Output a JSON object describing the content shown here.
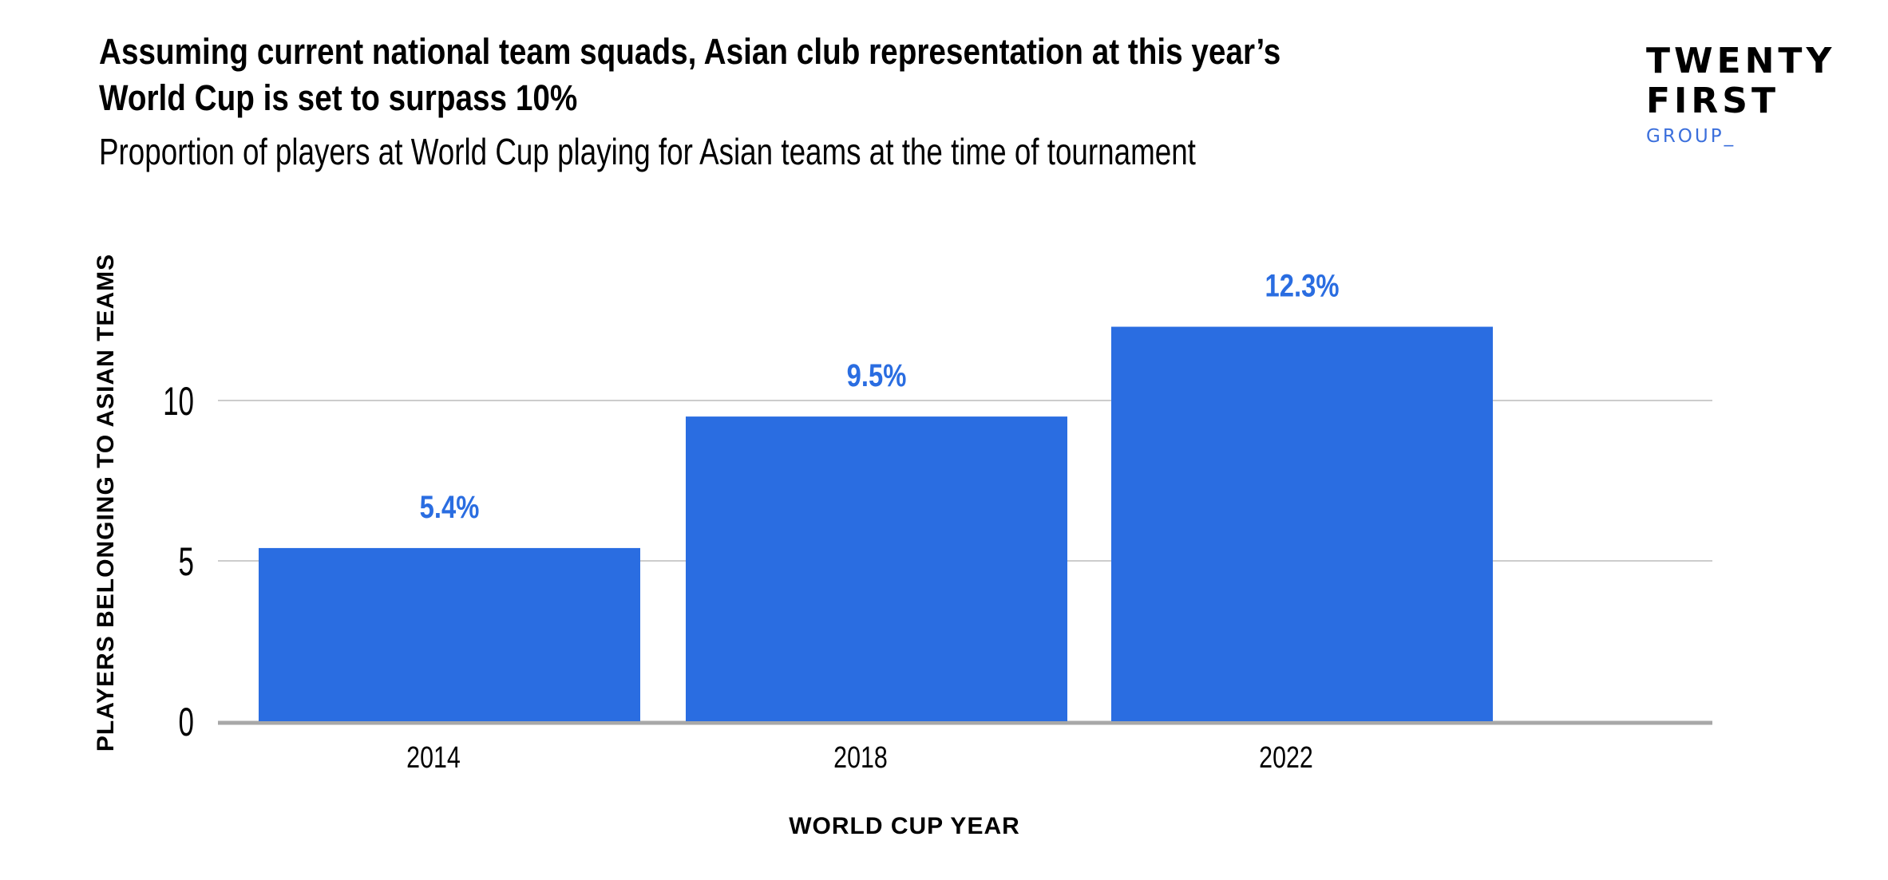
{
  "header": {
    "title_line1": "Assuming current national team squads, Asian club representation at this year’s",
    "title_line2": "World Cup is set to surpass 10%",
    "subtitle": "Proportion of players at World Cup playing for Asian teams at the time of tournament"
  },
  "logo": {
    "line1": "TWENTY",
    "line2": "FIRST",
    "line3": "GROUP_"
  },
  "chart_data": {
    "type": "bar",
    "title": "Assuming current national team squads, Asian club representation at this year’s World Cup is set to surpass 10%",
    "subtitle": "Proportion of players at World Cup playing for Asian teams at the time of tournament",
    "categories": [
      "2014",
      "2018",
      "2022"
    ],
    "values": [
      5.4,
      9.5,
      12.3
    ],
    "data_labels": [
      "5.4%",
      "9.5%",
      "12.3%"
    ],
    "xlabel": "WORLD CUP YEAR",
    "ylabel": "PLAYERS BELONGING TO ASIAN TEAMS",
    "yticks": [
      0,
      5,
      10
    ],
    "ylim": [
      0,
      10
    ],
    "grid": true,
    "bar_color": "#2a6de1",
    "label_color": "#2a6de1"
  }
}
